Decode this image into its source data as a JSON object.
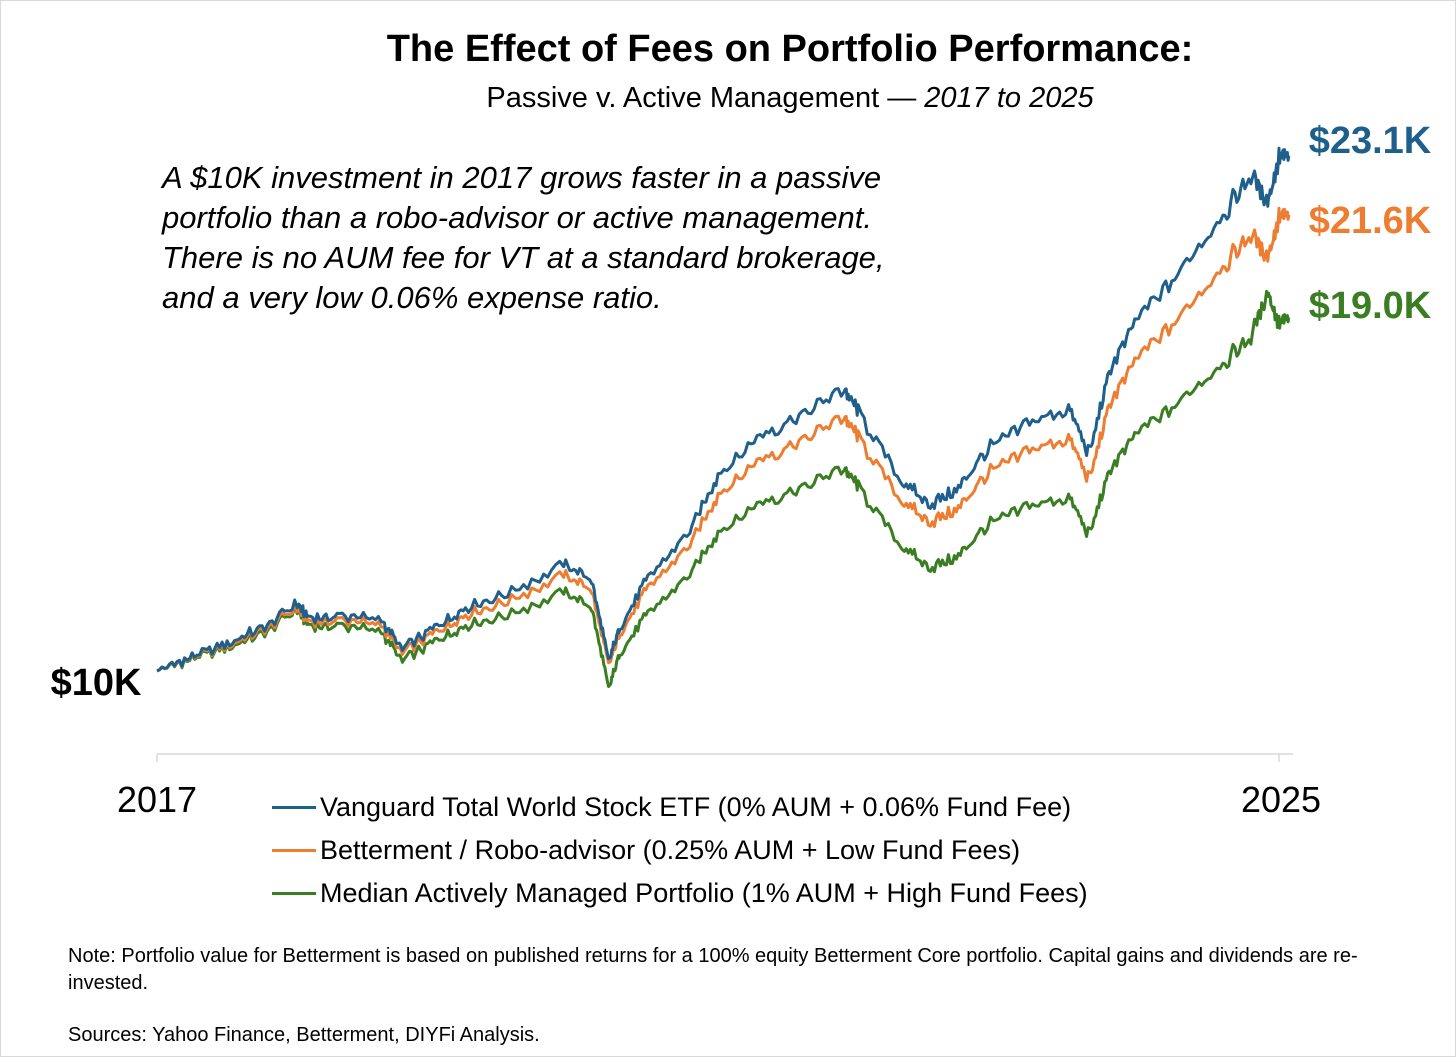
{
  "title": "The Effect of Fees on Portfolio Performance:",
  "subtitle_prefix": "Passive v. Active Management —",
  "subtitle_range": "2017 to 2025",
  "annotation": [
    "A $10K investment in 2017 grows faster in a passive",
    "portfolio than a robo-advisor or active management.",
    "There is no AUM fee for VT at a standard brokerage,",
    "and a very low 0.06% expense ratio."
  ],
  "note": "Note: Portfolio value for Betterment is based on published returns for a 100% equity Betterment Core portfolio. Capital gains and dividends are re-invested.",
  "sources": "Sources: Yahoo Finance, Betterment, DIYFi Analysis.",
  "colors": {
    "vanguard": "#1f5f8b",
    "betterment": "#ed7d31",
    "active": "#3a7d22"
  },
  "chart_data": {
    "type": "line",
    "x_label_start": "2017",
    "x_label_end": "2025",
    "xlim": [
      2017.0,
      2025.1
    ],
    "ylim": [
      8000,
      24000
    ],
    "start_label": "$10K",
    "x": [
      2017.0,
      2017.25,
      2017.5,
      2017.75,
      2018.0,
      2018.08,
      2018.3,
      2018.6,
      2018.75,
      2018.98,
      2019.2,
      2019.5,
      2019.9,
      2020.1,
      2020.22,
      2020.3,
      2020.5,
      2020.8,
      2021.0,
      2021.3,
      2021.6,
      2021.9,
      2022.0,
      2022.3,
      2022.5,
      2022.7,
      2022.9,
      2023.2,
      2023.5,
      2023.65,
      2023.8,
      2024.0,
      2024.3,
      2024.6,
      2024.8,
      2024.92,
      2025.0,
      2025.07
    ],
    "series": [
      {
        "name": "Vanguard Total World Stock ETF (0% AUM + 0.06% Fund Fee)",
        "color_key": "vanguard",
        "end_label": "$23.1K",
        "values": [
          10050,
          10400,
          10750,
          11150,
          11750,
          11400,
          11450,
          11350,
          10600,
          11150,
          11650,
          12000,
          12750,
          12350,
          10300,
          11150,
          12400,
          13600,
          15000,
          16000,
          16550,
          17200,
          16600,
          14900,
          14250,
          14600,
          15600,
          16300,
          16700,
          15550,
          17750,
          19000,
          20200,
          21600,
          22600,
          22000,
          23000,
          23100
        ]
      },
      {
        "name": "Betterment / Robo-advisor (0.25% AUM + Low Fund Fees)",
        "color_key": "betterment",
        "end_label": "$21.6K",
        "values": [
          10050,
          10380,
          10700,
          11080,
          11650,
          11300,
          11340,
          11220,
          10500,
          11020,
          11470,
          11800,
          12480,
          12100,
          10200,
          11000,
          12150,
          13250,
          14500,
          15400,
          15900,
          16500,
          15950,
          14400,
          13800,
          14100,
          15000,
          15600,
          15950,
          14900,
          16900,
          18000,
          19050,
          20300,
          21100,
          20600,
          21500,
          21600
        ]
      },
      {
        "name": "Median Actively Managed Portfolio (1% AUM + High Fund Fees)",
        "color_key": "active",
        "end_label": "$19.0K",
        "values": [
          10050,
          10350,
          10650,
          11000,
          11600,
          11200,
          11200,
          11050,
          10300,
          10800,
          11200,
          11450,
          12050,
          11650,
          9600,
          10500,
          11500,
          12500,
          13550,
          14300,
          14700,
          15200,
          14700,
          13250,
          12650,
          12900,
          13700,
          14200,
          14450,
          13500,
          15200,
          16100,
          16900,
          17850,
          18500,
          19700,
          18800,
          19000
        ]
      }
    ]
  }
}
